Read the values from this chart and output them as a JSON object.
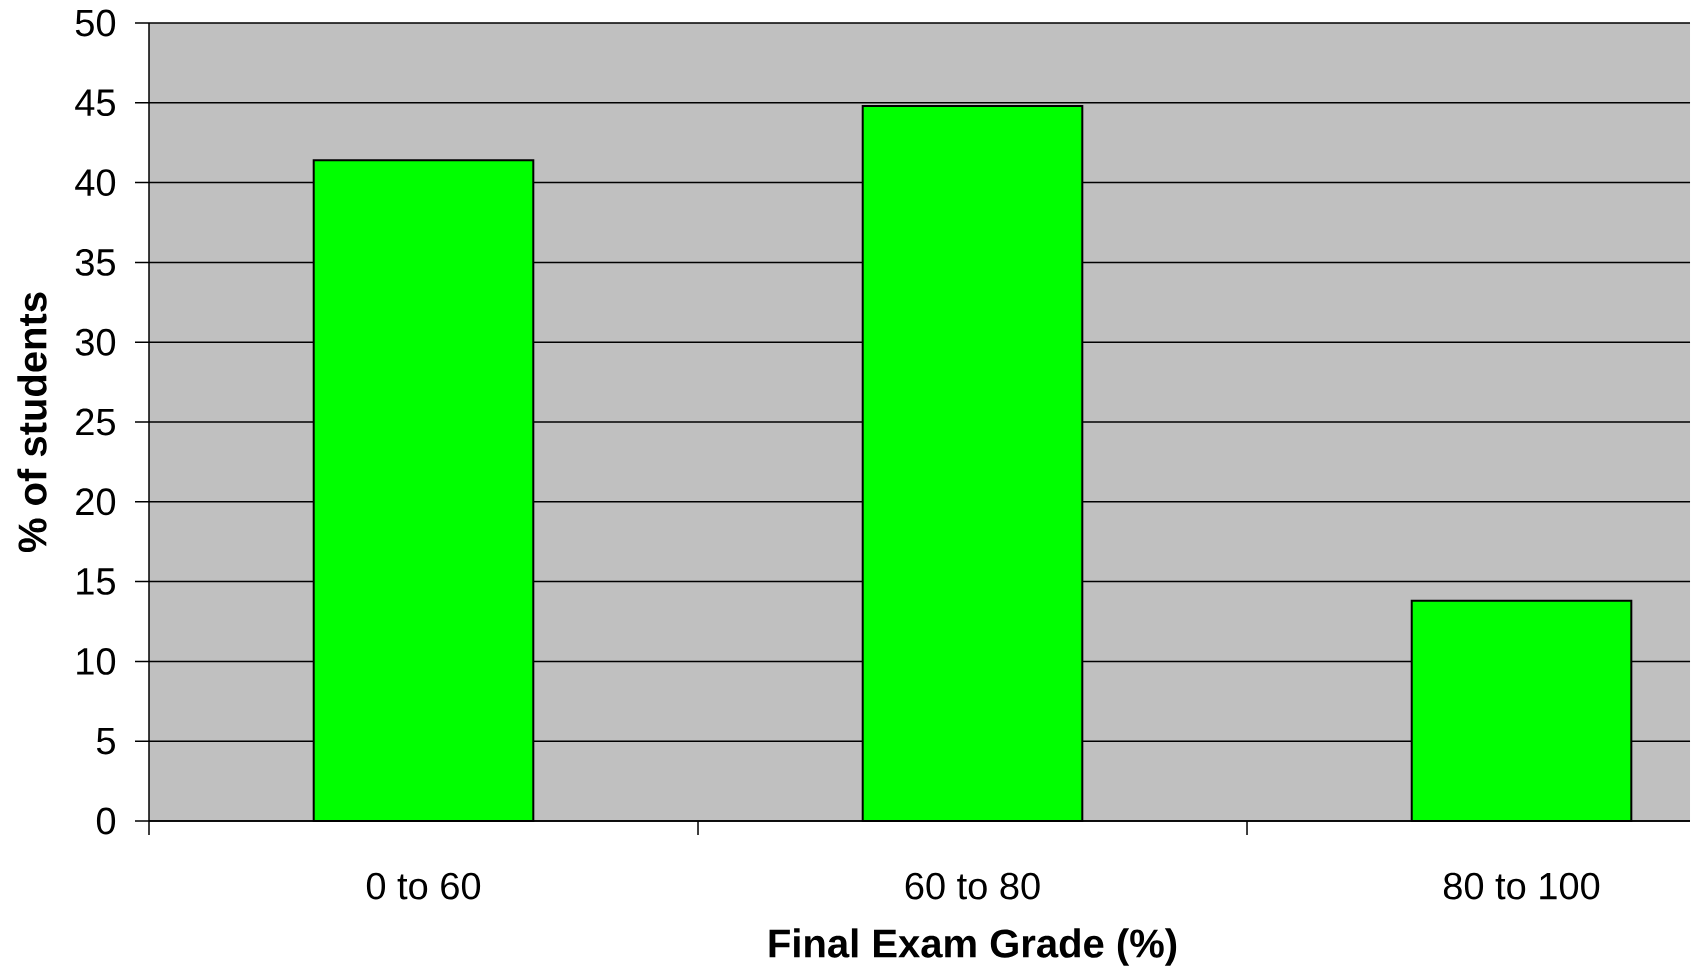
{
  "chart_data": {
    "type": "bar",
    "xlabel": "Final Exam Grade (%)",
    "ylabel": "% of students",
    "categories": [
      "0 to 60",
      "60 to 80",
      "80 to 100"
    ],
    "values": [
      41.4,
      44.8,
      13.8
    ],
    "color": "#00ff00",
    "ylim": [
      0,
      50
    ],
    "yticks": [
      0,
      5,
      10,
      15,
      20,
      25,
      30,
      35,
      40,
      45,
      50
    ],
    "grid": "y"
  }
}
